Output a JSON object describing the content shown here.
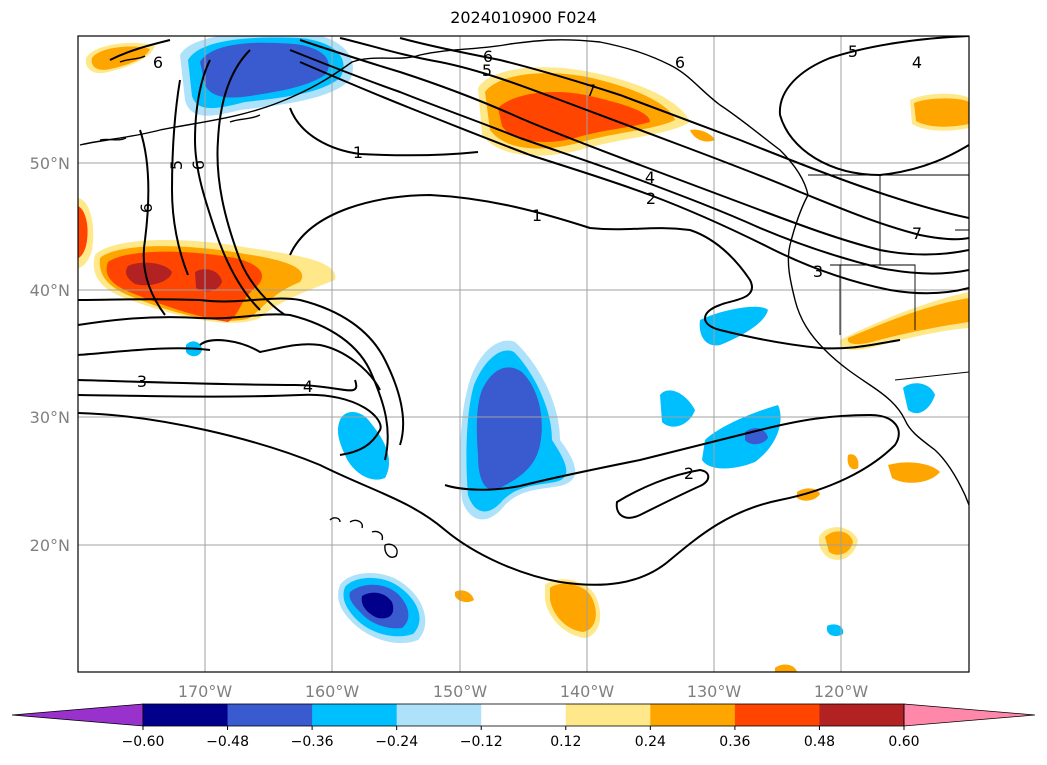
{
  "title": "2024010900 F024",
  "map": {
    "projection": "lat-lon",
    "lon_range": [
      "180°W",
      "110°W"
    ],
    "lat_range": [
      "10°N",
      "60°N"
    ],
    "lon_ticks": [
      "170°W",
      "160°W",
      "150°W",
      "140°W",
      "130°W",
      "120°W"
    ],
    "lat_ticks": [
      "50°N",
      "40°N",
      "30°N",
      "20°N"
    ],
    "gridlines": true
  },
  "contour_labels": [
    "6",
    "6",
    "5",
    "6",
    "5",
    "6",
    "7",
    "5",
    "4",
    "6",
    "1",
    "1",
    "4",
    "2",
    "7",
    "3",
    "3",
    "4",
    "2"
  ],
  "colorbar": {
    "ticks": [
      "−0.60",
      "−0.48",
      "−0.36",
      "−0.24",
      "−0.12",
      "0.12",
      "0.24",
      "0.36",
      "0.48",
      "0.60"
    ],
    "colors": [
      "#9932cc",
      "#00008b",
      "#3a5bd0",
      "#00bfff",
      "#aee2fb",
      "#ffffff",
      "#ffe88a",
      "#ffa500",
      "#ff4500",
      "#b22222",
      "#ff88aa"
    ],
    "extend": "both"
  },
  "style": {
    "coast_color": "#000000",
    "contour_color": "#000000"
  }
}
